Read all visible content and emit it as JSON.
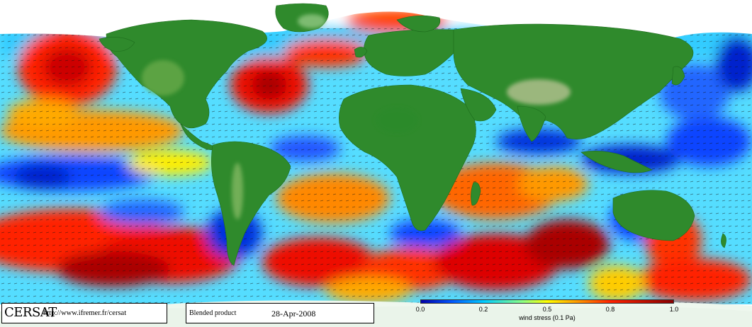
{
  "map": {
    "colormap": [
      "#0000cc",
      "#00aaff",
      "#00ffff",
      "#aaff55",
      "#ffff00",
      "#ff8800",
      "#ff0000",
      "#aa0000"
    ],
    "land_color": "#2f8a2c",
    "ice_color": "#ffffff"
  },
  "footer": {
    "logo": "CERSAT",
    "url": "http://www.ifremer.fr/cersat",
    "product": "Blended product",
    "date": "28-Apr-2008"
  },
  "colorbar": {
    "ticks": [
      "0.0",
      "0.2",
      "0.5",
      "0.8",
      "1.0"
    ],
    "label": "wind stress (0.1 Pa)"
  }
}
